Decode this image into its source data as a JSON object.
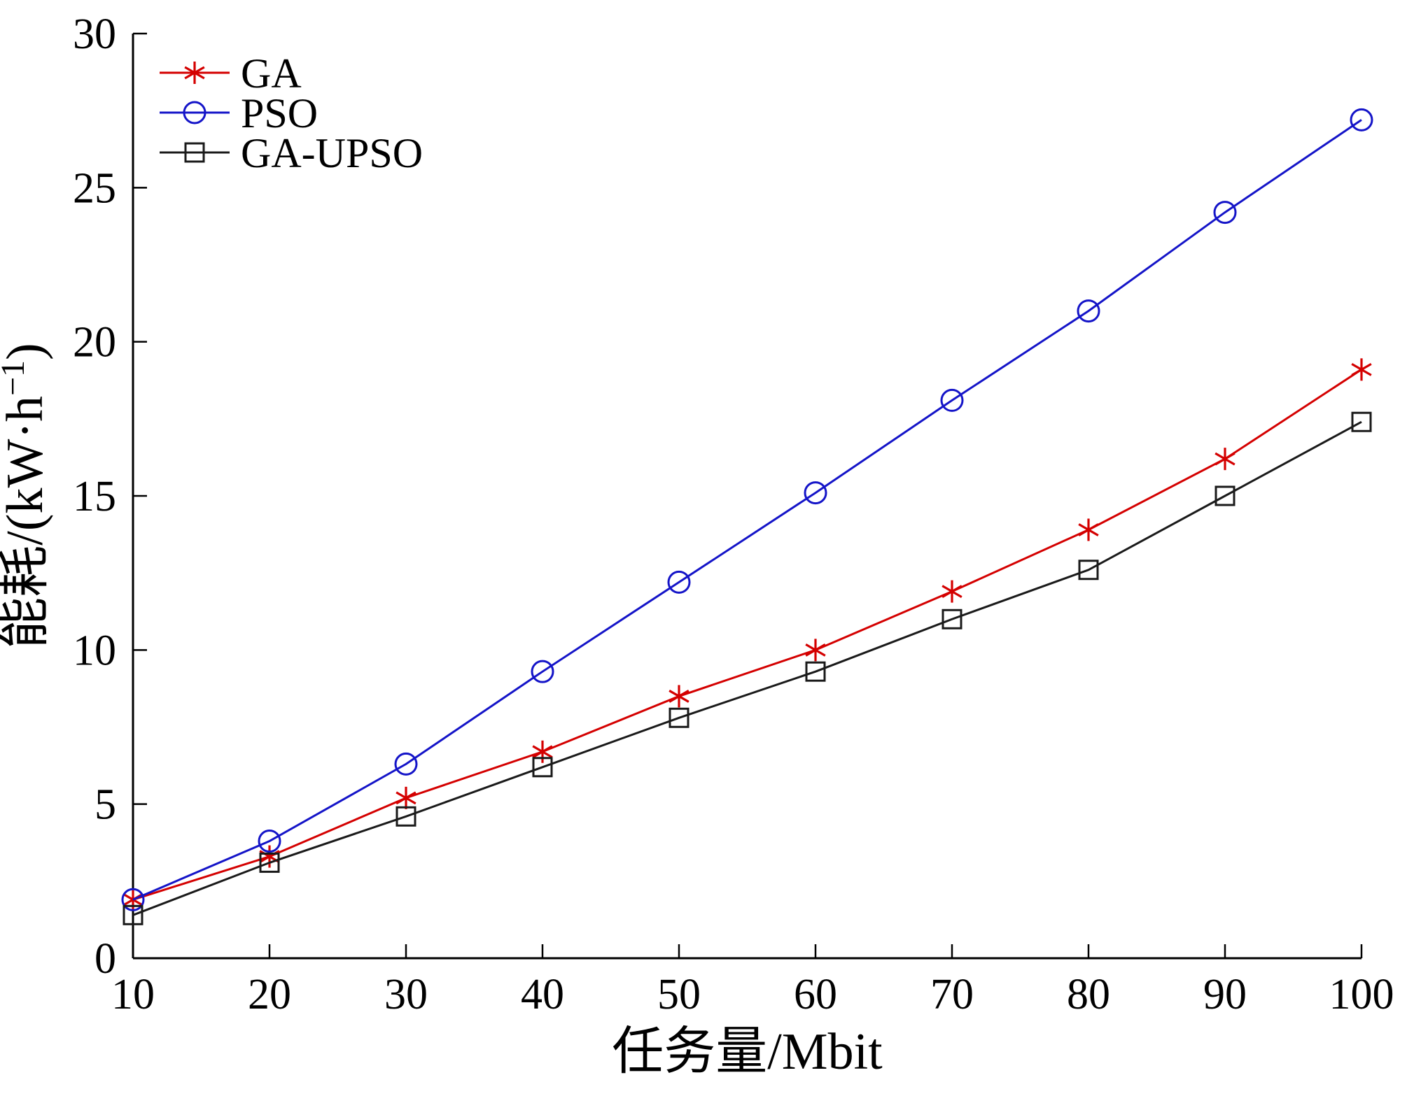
{
  "chart_data": {
    "type": "line",
    "title": "",
    "xlabel": "任务量/Mbit",
    "ylabel": "能耗/(kW·h⁻¹)",
    "xlim": [
      10,
      100
    ],
    "ylim": [
      0,
      30
    ],
    "xticks": [
      10,
      20,
      30,
      40,
      50,
      60,
      70,
      80,
      90,
      100
    ],
    "yticks": [
      0,
      5,
      10,
      15,
      20,
      25,
      30
    ],
    "grid": false,
    "legend_position": "top-left",
    "x": [
      10,
      20,
      30,
      40,
      50,
      60,
      70,
      80,
      90,
      100
    ],
    "series": [
      {
        "name": "GA",
        "color": "#d40000",
        "marker": "asterisk",
        "values": [
          1.9,
          3.3,
          5.2,
          6.7,
          8.5,
          10.0,
          11.9,
          13.9,
          16.2,
          19.1
        ]
      },
      {
        "name": "PSO",
        "color": "#1414c8",
        "marker": "circle",
        "values": [
          1.9,
          3.8,
          6.3,
          9.3,
          12.2,
          15.1,
          18.1,
          21.0,
          24.2,
          27.2
        ]
      },
      {
        "name": "GA-UPSO",
        "color": "#1a1a1a",
        "marker": "square",
        "values": [
          1.4,
          3.1,
          4.6,
          6.2,
          7.8,
          9.3,
          11.0,
          12.6,
          15.0,
          17.4
        ]
      }
    ]
  },
  "axes": {
    "x_label": "任务量/Mbit",
    "y_label": "能耗/(kW·h⁻¹)"
  }
}
